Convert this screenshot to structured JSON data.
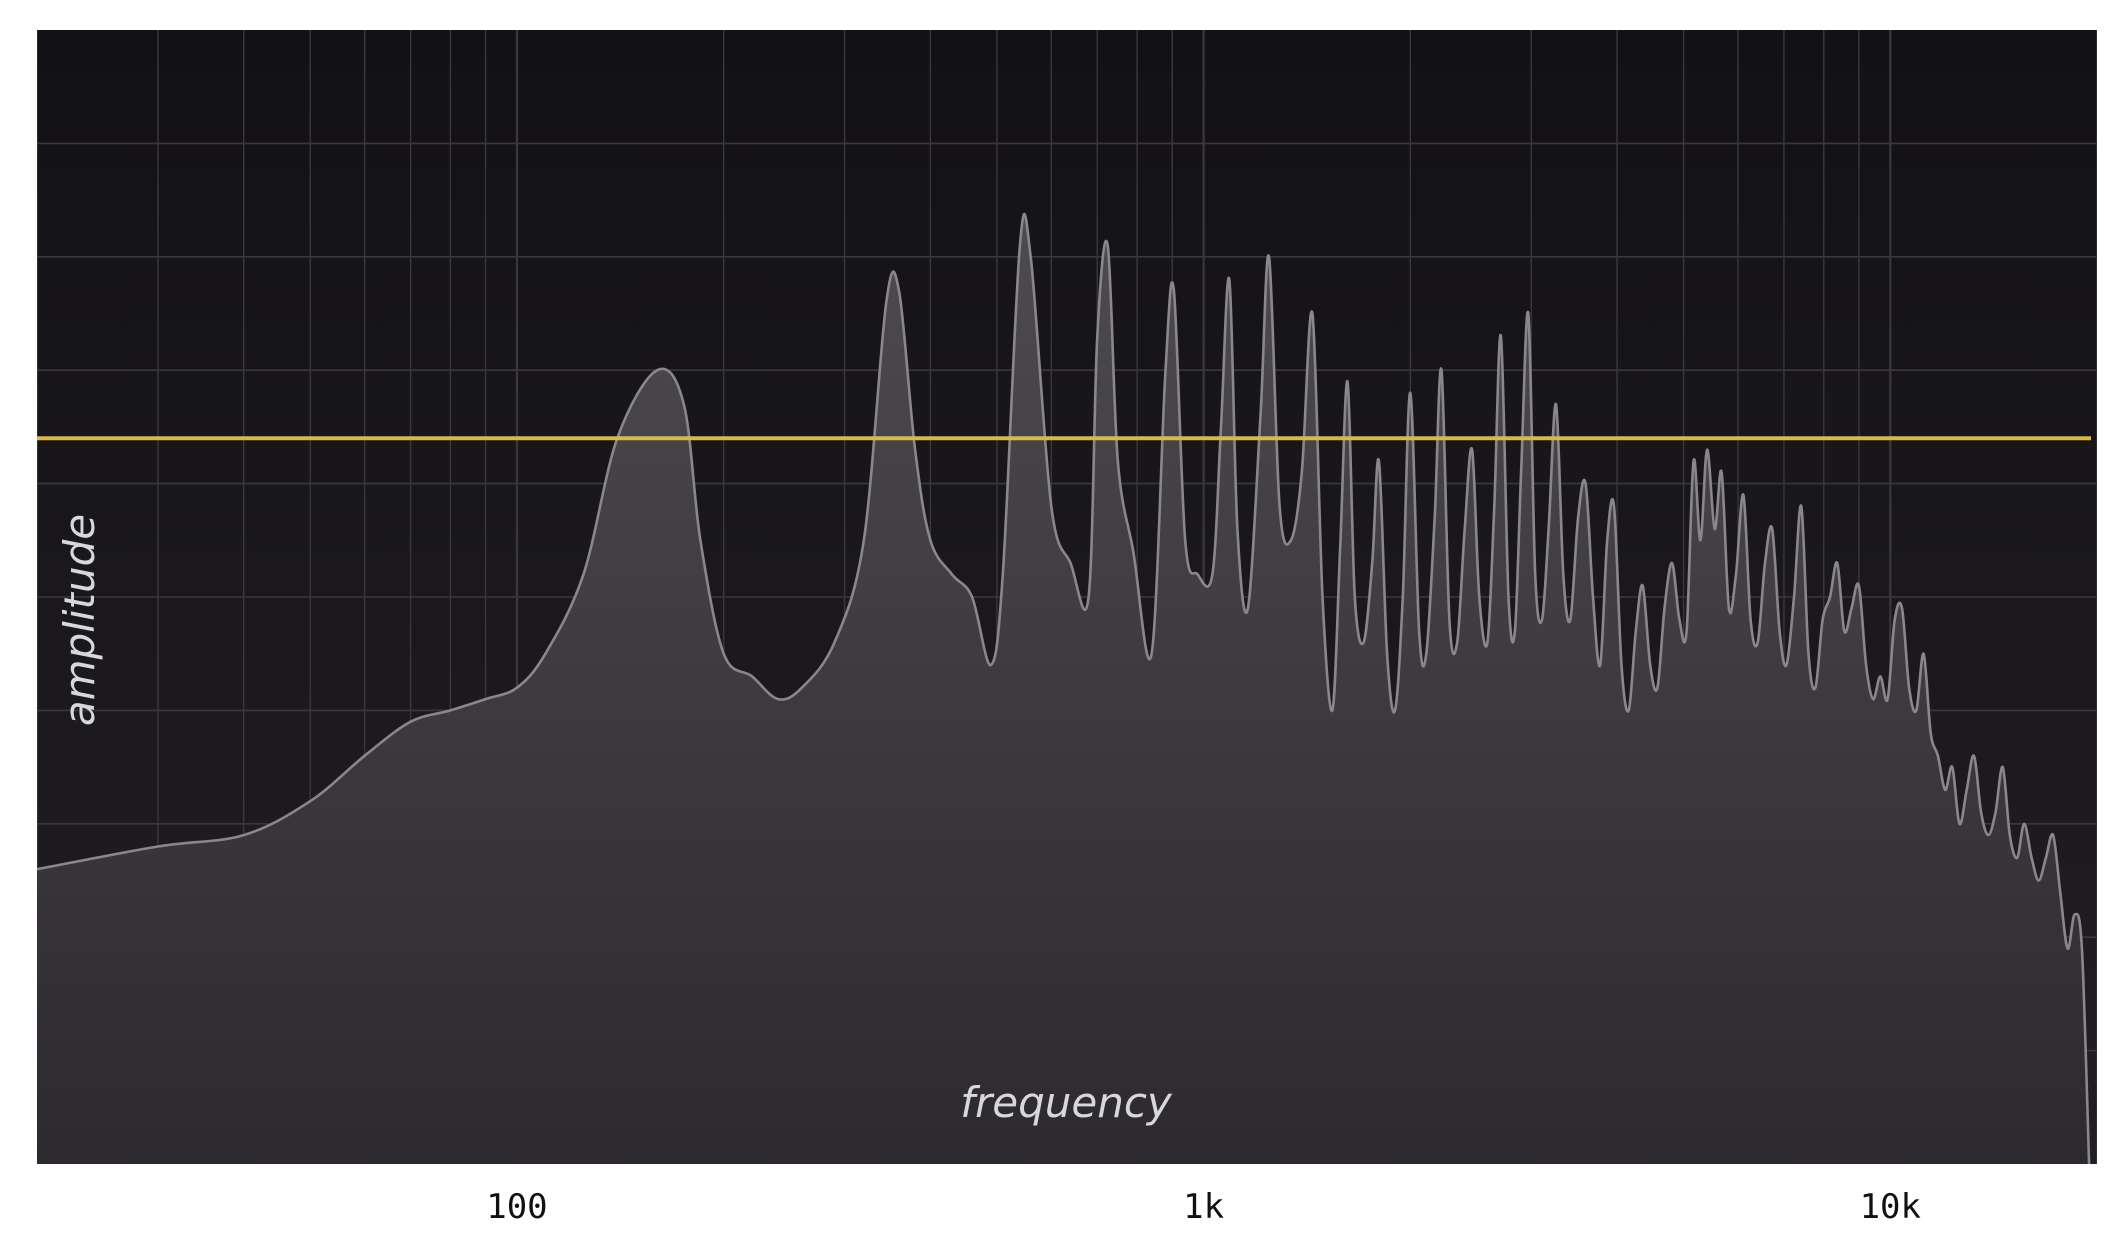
{
  "chart_data": {
    "type": "area",
    "xlabel": "frequency",
    "ylabel": "amplitude",
    "x_scale": "log",
    "xlim": [
      20,
      20000
    ],
    "ylim": [
      0,
      1
    ],
    "grid": true,
    "x_tick_labels": [
      {
        "value": 100,
        "label": "100"
      },
      {
        "value": 1000,
        "label": "1k"
      },
      {
        "value": 10000,
        "label": "10k"
      }
    ],
    "threshold": 0.64,
    "colors": {
      "background_top": "#121115",
      "background_bottom": "#221f24",
      "fill_top": "#4e4b50",
      "fill_bottom": "#2d2a2f",
      "outline": "#8a878c",
      "threshold_line": "#d9b84a",
      "grid": "#3a383d"
    },
    "series": [
      {
        "points": [
          [
            20,
            0.26
          ],
          [
            30,
            0.28
          ],
          [
            40,
            0.29
          ],
          [
            50,
            0.32
          ],
          [
            60,
            0.36
          ],
          [
            70,
            0.39
          ],
          [
            80,
            0.4
          ],
          [
            90,
            0.41
          ],
          [
            100,
            0.42
          ],
          [
            110,
            0.45
          ],
          [
            125,
            0.52
          ],
          [
            140,
            0.64
          ],
          [
            160,
            0.7
          ],
          [
            175,
            0.67
          ],
          [
            185,
            0.55
          ],
          [
            200,
            0.45
          ],
          [
            220,
            0.43
          ],
          [
            240,
            0.41
          ],
          [
            260,
            0.42
          ],
          [
            290,
            0.46
          ],
          [
            320,
            0.55
          ],
          [
            345,
            0.76
          ],
          [
            360,
            0.77
          ],
          [
            380,
            0.63
          ],
          [
            400,
            0.55
          ],
          [
            430,
            0.52
          ],
          [
            460,
            0.5
          ],
          [
            490,
            0.44
          ],
          [
            510,
            0.52
          ],
          [
            540,
            0.81
          ],
          [
            560,
            0.8
          ],
          [
            600,
            0.58
          ],
          [
            640,
            0.53
          ],
          [
            680,
            0.5
          ],
          [
            700,
            0.73
          ],
          [
            725,
            0.81
          ],
          [
            750,
            0.62
          ],
          [
            790,
            0.54
          ],
          [
            840,
            0.45
          ],
          [
            880,
            0.7
          ],
          [
            905,
            0.77
          ],
          [
            940,
            0.55
          ],
          [
            980,
            0.52
          ],
          [
            1030,
            0.52
          ],
          [
            1060,
            0.65
          ],
          [
            1090,
            0.78
          ],
          [
            1120,
            0.56
          ],
          [
            1160,
            0.49
          ],
          [
            1210,
            0.66
          ],
          [
            1245,
            0.8
          ],
          [
            1290,
            0.58
          ],
          [
            1340,
            0.55
          ],
          [
            1390,
            0.61
          ],
          [
            1440,
            0.75
          ],
          [
            1490,
            0.5
          ],
          [
            1540,
            0.4
          ],
          [
            1580,
            0.54
          ],
          [
            1620,
            0.69
          ],
          [
            1660,
            0.5
          ],
          [
            1710,
            0.46
          ],
          [
            1760,
            0.53
          ],
          [
            1800,
            0.62
          ],
          [
            1850,
            0.45
          ],
          [
            1900,
            0.4
          ],
          [
            1950,
            0.5
          ],
          [
            2000,
            0.68
          ],
          [
            2060,
            0.47
          ],
          [
            2110,
            0.45
          ],
          [
            2170,
            0.57
          ],
          [
            2220,
            0.7
          ],
          [
            2280,
            0.48
          ],
          [
            2340,
            0.46
          ],
          [
            2400,
            0.56
          ],
          [
            2460,
            0.63
          ],
          [
            2520,
            0.5
          ],
          [
            2590,
            0.46
          ],
          [
            2650,
            0.58
          ],
          [
            2710,
            0.73
          ],
          [
            2780,
            0.5
          ],
          [
            2840,
            0.47
          ],
          [
            2900,
            0.61
          ],
          [
            2970,
            0.75
          ],
          [
            3040,
            0.52
          ],
          [
            3110,
            0.48
          ],
          [
            3180,
            0.56
          ],
          [
            3260,
            0.67
          ],
          [
            3340,
            0.52
          ],
          [
            3420,
            0.48
          ],
          [
            3510,
            0.57
          ],
          [
            3600,
            0.6
          ],
          [
            3690,
            0.5
          ],
          [
            3780,
            0.44
          ],
          [
            3870,
            0.55
          ],
          [
            3960,
            0.58
          ],
          [
            4060,
            0.44
          ],
          [
            4160,
            0.4
          ],
          [
            4260,
            0.47
          ],
          [
            4360,
            0.51
          ],
          [
            4470,
            0.44
          ],
          [
            4580,
            0.42
          ],
          [
            4690,
            0.49
          ],
          [
            4810,
            0.53
          ],
          [
            4930,
            0.48
          ],
          [
            5050,
            0.47
          ],
          [
            5170,
            0.62
          ],
          [
            5290,
            0.55
          ],
          [
            5410,
            0.63
          ],
          [
            5550,
            0.56
          ],
          [
            5680,
            0.61
          ],
          [
            5820,
            0.49
          ],
          [
            5960,
            0.52
          ],
          [
            6110,
            0.59
          ],
          [
            6260,
            0.48
          ],
          [
            6410,
            0.46
          ],
          [
            6570,
            0.53
          ],
          [
            6730,
            0.56
          ],
          [
            6900,
            0.47
          ],
          [
            7060,
            0.44
          ],
          [
            7240,
            0.5
          ],
          [
            7420,
            0.58
          ],
          [
            7600,
            0.45
          ],
          [
            7780,
            0.42
          ],
          [
            7970,
            0.48
          ],
          [
            8170,
            0.5
          ],
          [
            8370,
            0.53
          ],
          [
            8570,
            0.47
          ],
          [
            8780,
            0.49
          ],
          [
            9000,
            0.51
          ],
          [
            9220,
            0.44
          ],
          [
            9440,
            0.41
          ],
          [
            9670,
            0.43
          ],
          [
            9910,
            0.41
          ],
          [
            10150,
            0.48
          ],
          [
            10400,
            0.49
          ],
          [
            10650,
            0.42
          ],
          [
            10910,
            0.4
          ],
          [
            11180,
            0.45
          ],
          [
            11450,
            0.38
          ],
          [
            11730,
            0.36
          ],
          [
            12020,
            0.33
          ],
          [
            12310,
            0.35
          ],
          [
            12610,
            0.3
          ],
          [
            12920,
            0.33
          ],
          [
            13240,
            0.36
          ],
          [
            13560,
            0.31
          ],
          [
            13890,
            0.29
          ],
          [
            14230,
            0.31
          ],
          [
            14580,
            0.35
          ],
          [
            14930,
            0.29
          ],
          [
            15300,
            0.27
          ],
          [
            15670,
            0.3
          ],
          [
            16060,
            0.27
          ],
          [
            16450,
            0.25
          ],
          [
            16850,
            0.27
          ],
          [
            17260,
            0.29
          ],
          [
            17680,
            0.24
          ],
          [
            18120,
            0.19
          ],
          [
            18560,
            0.22
          ],
          [
            19010,
            0.19
          ],
          [
            19480,
            0.0
          ]
        ]
      }
    ]
  }
}
